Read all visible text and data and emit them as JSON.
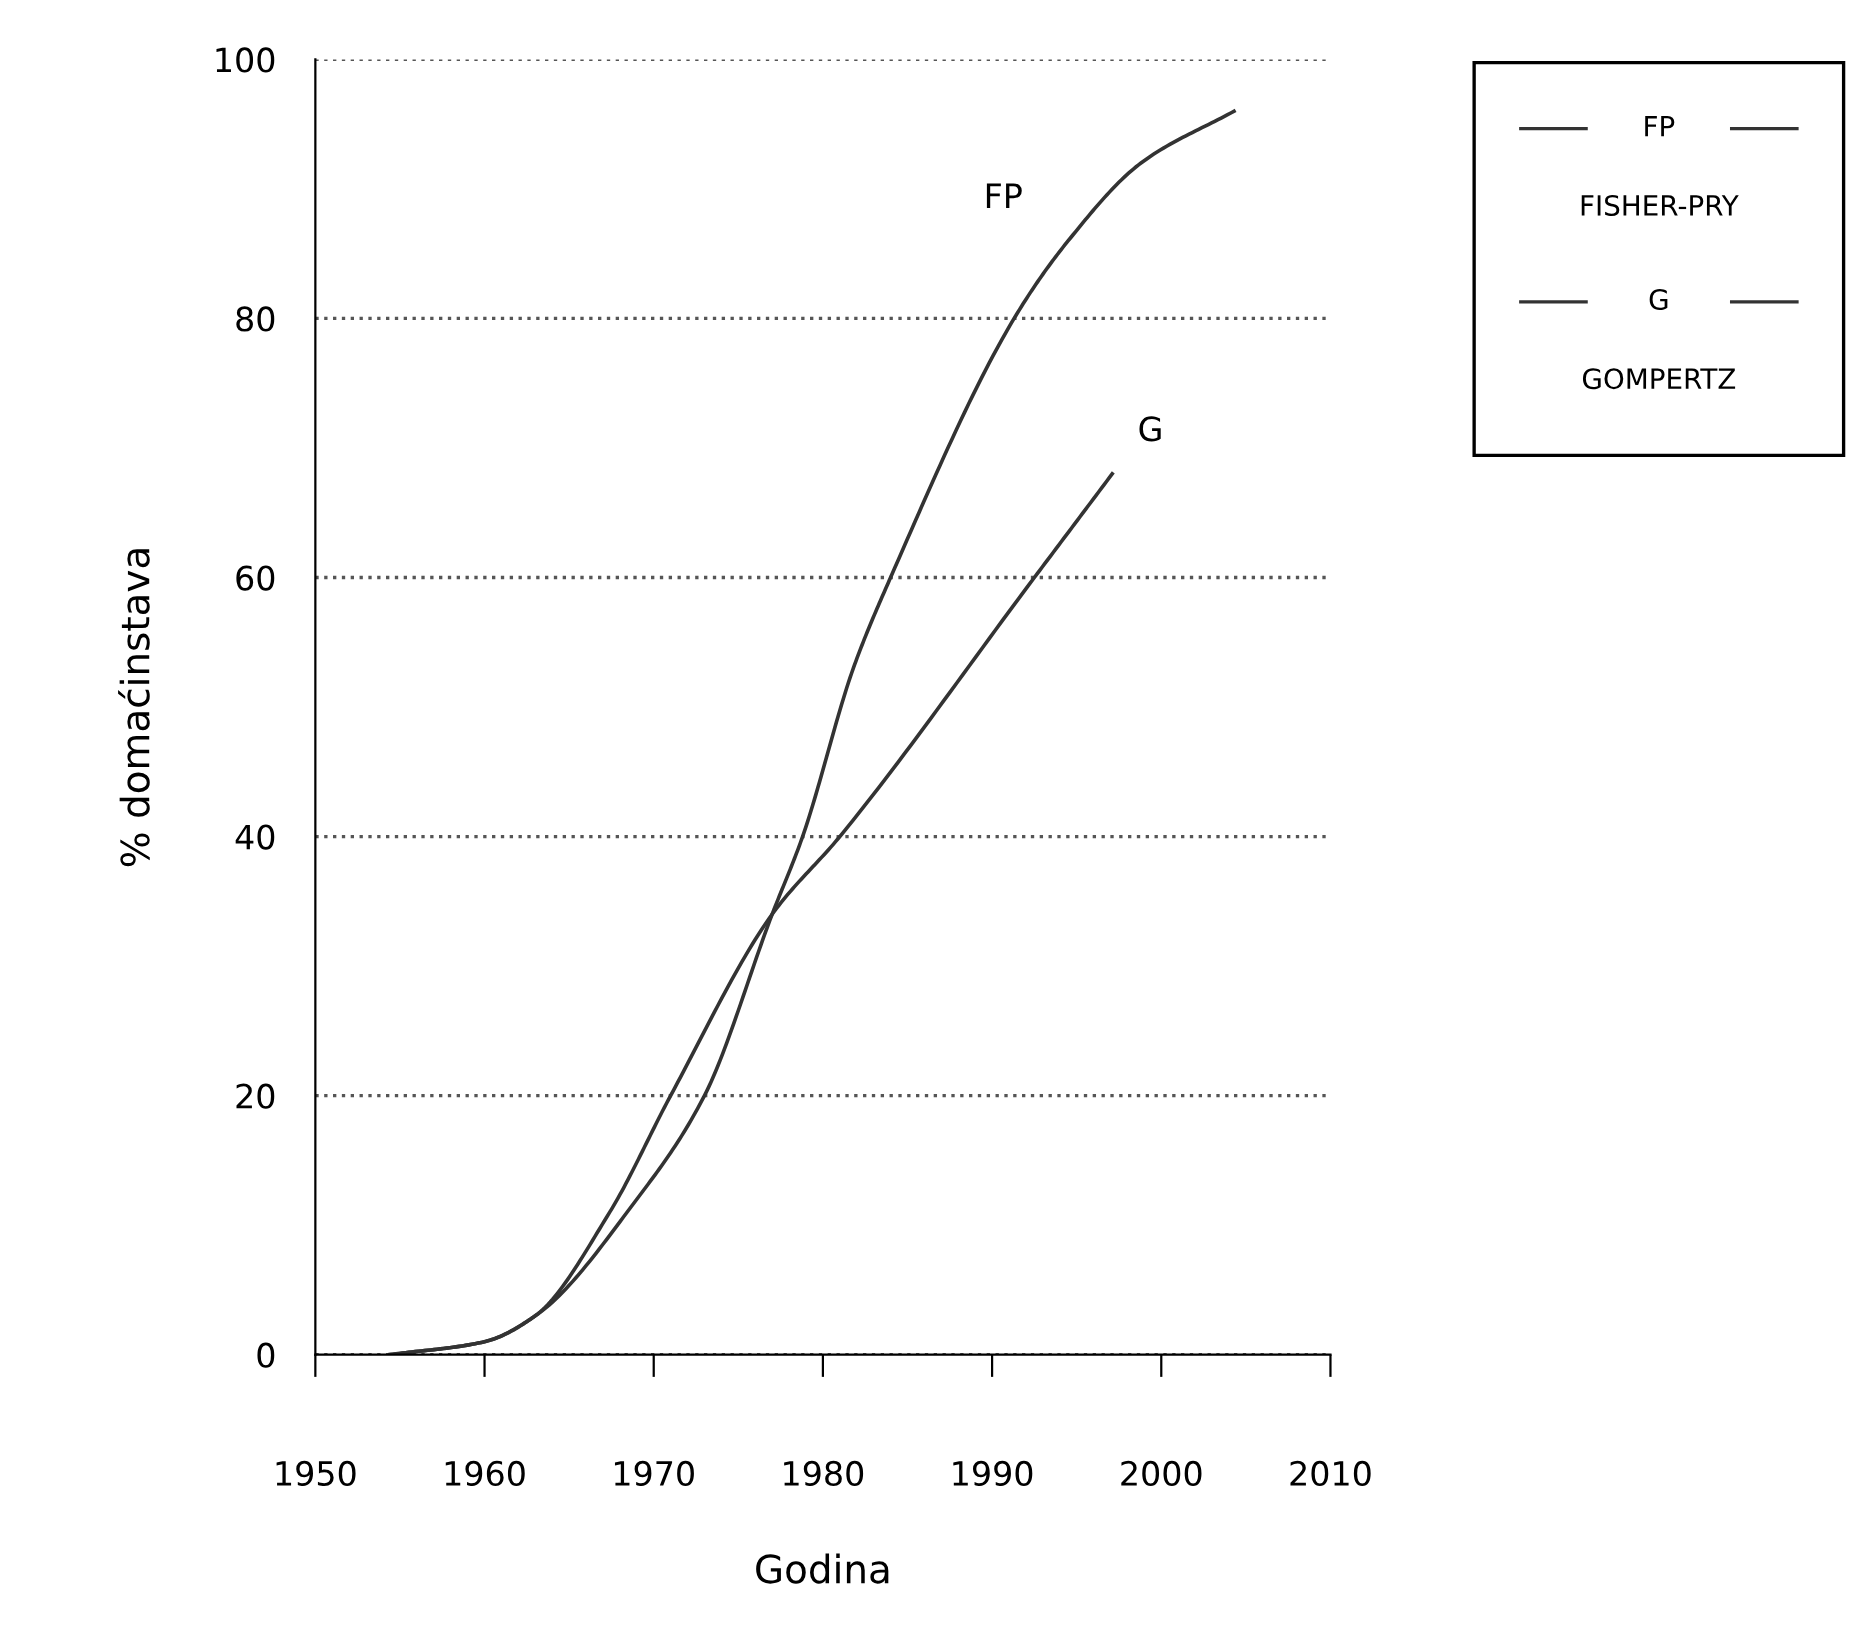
{
  "chart_data": {
    "type": "line",
    "xlabel": "Godina",
    "ylabel": "% domaćinstava",
    "xlim": [
      1950,
      2010
    ],
    "xticks": [
      1950,
      1960,
      1970,
      1980,
      1990,
      2000,
      2010
    ],
    "ylim": [
      0,
      100
    ],
    "yticks": [
      0,
      20,
      40,
      60,
      80,
      100
    ],
    "grid": "y",
    "legend": "top right",
    "line_style": "solid",
    "annotations": [
      "FISHER-PRY",
      "GOMPERTZ"
    ],
    "series": [
      {
        "name": "FP",
        "color": "#333333",
        "x": [
          1954.4,
          1960,
          1963,
          1969,
          1973,
          1977,
          1978.8,
          1981.8,
          1984,
          1991.3,
          1994.5,
          1998.8,
          2004.3
        ],
        "values": [
          0,
          1,
          3,
          12,
          20,
          34,
          40,
          53,
          60,
          80,
          86,
          92,
          96
        ]
      },
      {
        "name": "G",
        "color": "#333333",
        "x": [
          1954.4,
          1960,
          1963,
          1967.4,
          1971,
          1977,
          1981,
          1992.5,
          1997.1
        ],
        "values": [
          0,
          1,
          3,
          11,
          20,
          34,
          40,
          60,
          68
        ]
      }
    ]
  }
}
